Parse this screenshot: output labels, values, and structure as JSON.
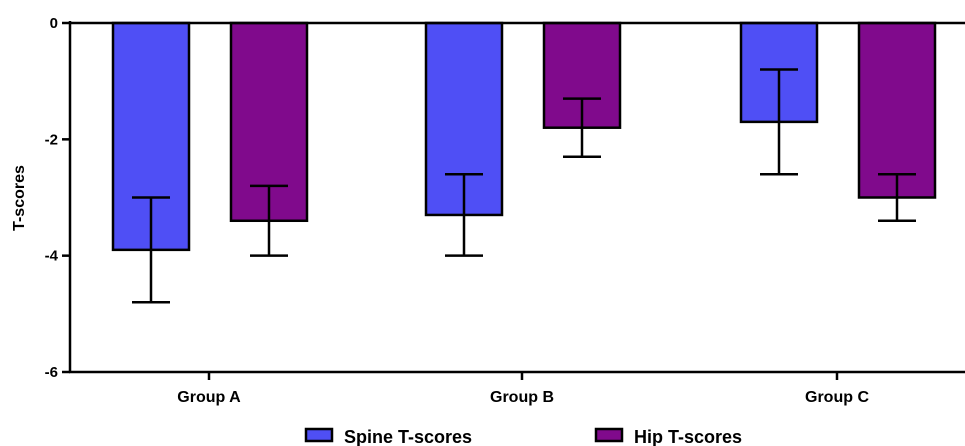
{
  "chart_data": {
    "type": "bar",
    "title": "",
    "xlabel": "",
    "ylabel": "T-scores",
    "ylim": [
      -6,
      0
    ],
    "yticks": [
      0,
      -2,
      -4,
      -6
    ],
    "categories": [
      "Group A",
      "Group B",
      "Group C"
    ],
    "series": [
      {
        "name": "Spine T-scores",
        "color": "#4f4ff5",
        "values": [
          -3.9,
          -3.3,
          -1.7
        ],
        "err_low": [
          -4.8,
          -4.0,
          -2.6
        ],
        "err_high": [
          -3.0,
          -2.6,
          -0.8
        ]
      },
      {
        "name": "Hip T-scores",
        "color": "#800a8c",
        "values": [
          -3.4,
          -1.8,
          -3.0
        ],
        "err_low": [
          -4.0,
          -2.3,
          -3.4
        ],
        "err_high": [
          -2.8,
          -1.3,
          -2.6
        ]
      }
    ],
    "legend_position": "bottom-center",
    "grid": false
  }
}
